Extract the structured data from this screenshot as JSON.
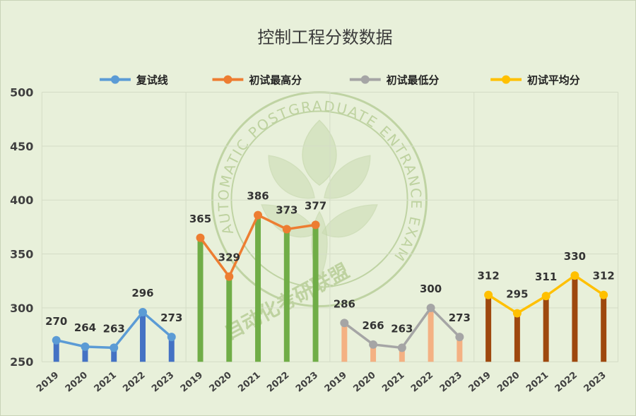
{
  "chart_data": {
    "type": "line",
    "title": "控制工程分数数据",
    "ylim": [
      250,
      500
    ],
    "yticks": [
      250,
      300,
      350,
      400,
      450,
      500
    ],
    "grid": true,
    "legend_position": "top",
    "categories": [
      "2019",
      "2020",
      "2021",
      "2022",
      "2023"
    ],
    "series": [
      {
        "name": "复试线",
        "values": [
          270,
          264,
          263,
          296,
          273
        ],
        "line_color": "#5b9bd5",
        "bar_color": "#4472c4"
      },
      {
        "name": "初试最高分",
        "values": [
          365,
          329,
          386,
          373,
          377
        ],
        "line_color": "#ed7d31",
        "bar_color": "#70ad47"
      },
      {
        "name": "初试最低分",
        "values": [
          286,
          266,
          263,
          300,
          273
        ],
        "line_color": "#a5a5a5",
        "bar_color": "#f4b183"
      },
      {
        "name": "初试平均分",
        "values": [
          312,
          295,
          311,
          330,
          312
        ],
        "line_color": "#ffc000",
        "bar_color": "#9e480e"
      }
    ]
  },
  "watermark": {
    "ring_text": "AUTOMATIC POSTGRADUATE ENTRANCE EXAMINATION ALLIANCE",
    "chinese_text": "自动化考研联盟"
  }
}
